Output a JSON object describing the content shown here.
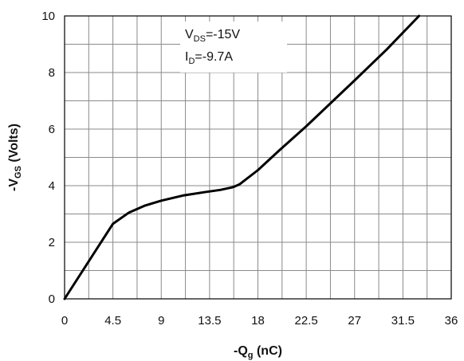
{
  "chart_data": {
    "type": "line",
    "xlabel": {
      "prefix": "-Q",
      "sub": "g",
      "suffix": " (nC)"
    },
    "ylabel": {
      "prefix": "-V",
      "sub": "GS",
      "suffix": " (Volts)"
    },
    "xlim": [
      0,
      36
    ],
    "ylim": [
      0,
      10
    ],
    "x_ticks": [
      "0",
      "4.5",
      "9",
      "13.5",
      "18",
      "22.5",
      "27",
      "31.5",
      "36"
    ],
    "y_ticks": [
      "0",
      "2",
      "4",
      "6",
      "8",
      "10"
    ],
    "grid": true,
    "annotations": [
      {
        "prefix": "V",
        "sub": "DS",
        "suffix": "=-15V"
      },
      {
        "prefix": "I",
        "sub": "D",
        "suffix": "=-9.7A"
      }
    ],
    "series": [
      {
        "color": "#000000",
        "x": [
          0,
          4.5,
          6,
          7.5,
          9,
          11,
          13,
          14.5,
          15.7,
          16.3,
          18,
          20,
          22.5,
          25,
          27,
          30,
          33
        ],
        "y": [
          0,
          2.65,
          3.05,
          3.3,
          3.47,
          3.65,
          3.77,
          3.85,
          3.95,
          4.05,
          4.55,
          5.25,
          6.1,
          7.0,
          7.72,
          8.82,
          10.0
        ]
      }
    ]
  }
}
